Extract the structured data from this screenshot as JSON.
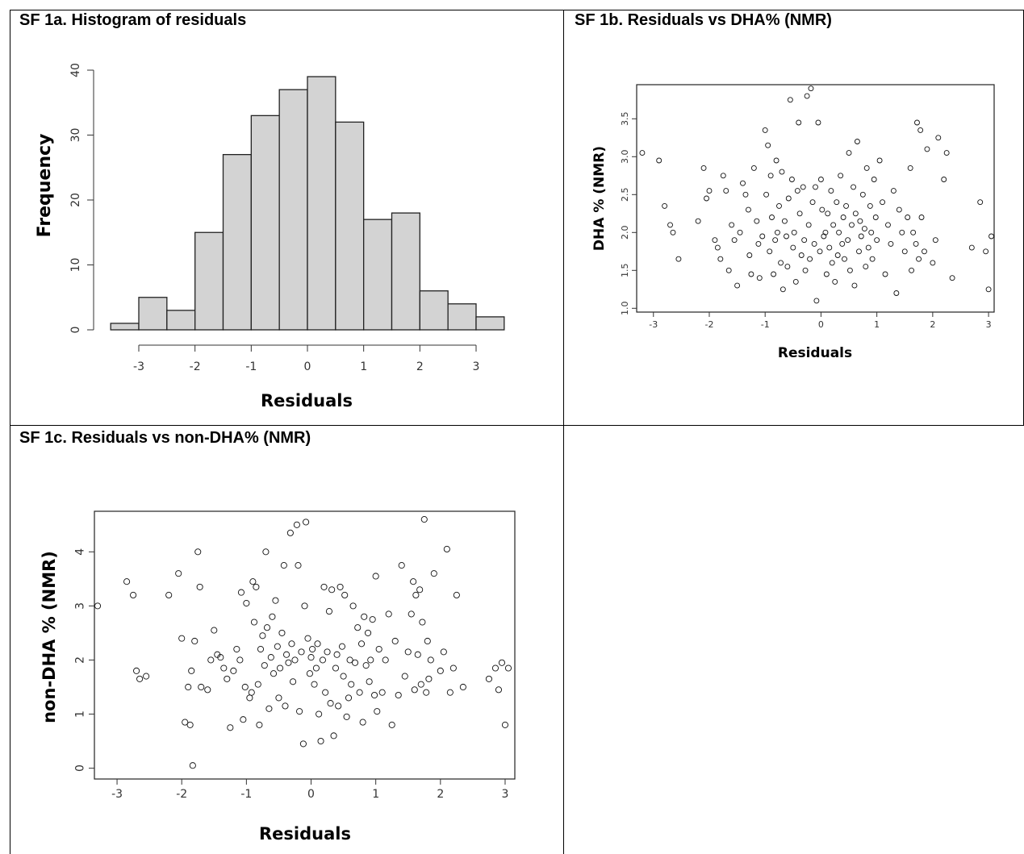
{
  "panels": {
    "a_title": "SF 1a. Histogram of residuals",
    "b_title": "SF 1b. Residuals vs DHA% (NMR)",
    "c_title": "SF 1c. Residuals vs non-DHA% (NMR)"
  },
  "chart_data": [
    {
      "type": "bar",
      "title": "SF 1a. Histogram of residuals",
      "xlabel": "Residuals",
      "ylabel": "Frequency",
      "bins": [
        [
          -3.5,
          -3.0
        ],
        [
          -3.0,
          -2.5
        ],
        [
          -2.5,
          -2.0
        ],
        [
          -2.0,
          -1.5
        ],
        [
          -1.5,
          -1.0
        ],
        [
          -1.0,
          -0.5
        ],
        [
          -0.5,
          0.0
        ],
        [
          0.0,
          0.5
        ],
        [
          0.5,
          1.0
        ],
        [
          1.0,
          1.5
        ],
        [
          1.5,
          2.0
        ],
        [
          2.0,
          2.5
        ],
        [
          2.5,
          3.0
        ],
        [
          3.0,
          3.5
        ]
      ],
      "values": [
        1,
        5,
        3,
        15,
        27,
        33,
        37,
        39,
        32,
        17,
        18,
        6,
        4,
        2
      ],
      "bar_color": "#d3d3d3",
      "xlim": [
        -3.5,
        3.5
      ],
      "ylim": [
        0,
        40
      ],
      "xticks": [
        -3,
        -2,
        -1,
        0,
        1,
        2,
        3
      ],
      "xtick_labels": [
        "-3",
        "-2",
        "-1",
        "0",
        "1",
        "2",
        "3"
      ],
      "yticks": [
        0,
        10,
        20,
        30,
        40
      ],
      "ytick_labels": [
        "0",
        "10",
        "20",
        "30",
        "40"
      ]
    },
    {
      "type": "scatter",
      "title": "SF 1b. Residuals vs DHA% (NMR)",
      "xlabel": "Residuals",
      "ylabel": "DHA % (NMR)",
      "xlim": [
        -3.3,
        3.1
      ],
      "ylim": [
        0.95,
        3.95
      ],
      "xticks": [
        -3,
        -2,
        -1,
        0,
        1,
        2,
        3
      ],
      "xtick_labels": [
        "-3",
        "-2",
        "-1",
        "0",
        "1",
        "2",
        "3"
      ],
      "yticks": [
        1.0,
        1.5,
        2.0,
        2.5,
        3.0,
        3.5
      ],
      "ytick_labels": [
        "1.0",
        "1.5",
        "2.0",
        "2.5",
        "3.0",
        "3.5"
      ],
      "points": [
        [
          -3.2,
          3.05
        ],
        [
          -2.9,
          2.95
        ],
        [
          -2.8,
          2.35
        ],
        [
          -2.7,
          2.1
        ],
        [
          -2.65,
          2.0
        ],
        [
          -2.55,
          1.65
        ],
        [
          -2.2,
          2.15
        ],
        [
          -2.1,
          2.85
        ],
        [
          -2.05,
          2.45
        ],
        [
          -2.0,
          2.55
        ],
        [
          -1.9,
          1.9
        ],
        [
          -1.85,
          1.8
        ],
        [
          -1.8,
          1.65
        ],
        [
          -1.75,
          2.75
        ],
        [
          -1.7,
          2.55
        ],
        [
          -1.65,
          1.5
        ],
        [
          -1.6,
          2.1
        ],
        [
          -1.55,
          1.9
        ],
        [
          -1.5,
          1.3
        ],
        [
          -1.45,
          2.0
        ],
        [
          -1.4,
          2.65
        ],
        [
          -1.35,
          2.5
        ],
        [
          -1.3,
          2.3
        ],
        [
          -1.28,
          1.7
        ],
        [
          -1.25,
          1.45
        ],
        [
          -1.2,
          2.85
        ],
        [
          -1.15,
          2.15
        ],
        [
          -1.12,
          1.85
        ],
        [
          -1.1,
          1.4
        ],
        [
          -1.05,
          1.95
        ],
        [
          -1.0,
          3.35
        ],
        [
          -0.98,
          2.5
        ],
        [
          -0.95,
          3.15
        ],
        [
          -0.92,
          1.75
        ],
        [
          -0.9,
          2.75
        ],
        [
          -0.88,
          2.2
        ],
        [
          -0.85,
          1.45
        ],
        [
          -0.82,
          1.9
        ],
        [
          -0.8,
          2.95
        ],
        [
          -0.78,
          2.0
        ],
        [
          -0.75,
          2.35
        ],
        [
          -0.72,
          1.6
        ],
        [
          -0.7,
          2.8
        ],
        [
          -0.68,
          1.25
        ],
        [
          -0.65,
          2.15
        ],
        [
          -0.62,
          1.95
        ],
        [
          -0.6,
          1.55
        ],
        [
          -0.58,
          2.45
        ],
        [
          -0.55,
          3.75
        ],
        [
          -0.52,
          2.7
        ],
        [
          -0.5,
          1.8
        ],
        [
          -0.48,
          2.0
        ],
        [
          -0.45,
          1.35
        ],
        [
          -0.42,
          2.55
        ],
        [
          -0.4,
          3.45
        ],
        [
          -0.38,
          2.25
        ],
        [
          -0.35,
          1.7
        ],
        [
          -0.32,
          2.6
        ],
        [
          -0.3,
          1.9
        ],
        [
          -0.28,
          1.5
        ],
        [
          -0.25,
          3.8
        ],
        [
          -0.22,
          2.1
        ],
        [
          -0.2,
          1.65
        ],
        [
          -0.18,
          3.9
        ],
        [
          -0.15,
          2.4
        ],
        [
          -0.12,
          1.85
        ],
        [
          -0.1,
          2.6
        ],
        [
          -0.08,
          1.1
        ],
        [
          -0.05,
          3.45
        ],
        [
          -0.02,
          1.75
        ],
        [
          0.0,
          2.7
        ],
        [
          0.02,
          2.3
        ],
        [
          0.05,
          1.95
        ],
        [
          0.08,
          2.0
        ],
        [
          0.1,
          1.45
        ],
        [
          0.12,
          2.25
        ],
        [
          0.15,
          1.8
        ],
        [
          0.18,
          2.55
        ],
        [
          0.2,
          1.6
        ],
        [
          0.22,
          2.1
        ],
        [
          0.25,
          1.35
        ],
        [
          0.28,
          2.4
        ],
        [
          0.3,
          1.7
        ],
        [
          0.32,
          2.0
        ],
        [
          0.35,
          2.75
        ],
        [
          0.38,
          1.85
        ],
        [
          0.4,
          2.2
        ],
        [
          0.42,
          1.65
        ],
        [
          0.45,
          2.35
        ],
        [
          0.48,
          1.9
        ],
        [
          0.5,
          3.05
        ],
        [
          0.52,
          1.5
        ],
        [
          0.55,
          2.1
        ],
        [
          0.58,
          2.6
        ],
        [
          0.6,
          1.3
        ],
        [
          0.62,
          2.25
        ],
        [
          0.65,
          3.2
        ],
        [
          0.68,
          1.75
        ],
        [
          0.7,
          2.15
        ],
        [
          0.72,
          1.95
        ],
        [
          0.75,
          2.5
        ],
        [
          0.78,
          2.05
        ],
        [
          0.8,
          1.55
        ],
        [
          0.82,
          2.85
        ],
        [
          0.85,
          1.8
        ],
        [
          0.88,
          2.35
        ],
        [
          0.9,
          2.0
        ],
        [
          0.92,
          1.65
        ],
        [
          0.95,
          2.7
        ],
        [
          0.98,
          2.2
        ],
        [
          1.0,
          1.9
        ],
        [
          1.05,
          2.95
        ],
        [
          1.1,
          2.4
        ],
        [
          1.15,
          1.45
        ],
        [
          1.2,
          2.1
        ],
        [
          1.25,
          1.85
        ],
        [
          1.3,
          2.55
        ],
        [
          1.35,
          1.2
        ],
        [
          1.4,
          2.3
        ],
        [
          1.45,
          2.0
        ],
        [
          1.5,
          1.75
        ],
        [
          1.55,
          2.2
        ],
        [
          1.6,
          2.85
        ],
        [
          1.62,
          1.5
        ],
        [
          1.65,
          2.0
        ],
        [
          1.7,
          1.85
        ],
        [
          1.72,
          3.45
        ],
        [
          1.75,
          1.65
        ],
        [
          1.78,
          3.35
        ],
        [
          1.8,
          2.2
        ],
        [
          1.85,
          1.75
        ],
        [
          1.9,
          3.1
        ],
        [
          2.0,
          1.6
        ],
        [
          2.05,
          1.9
        ],
        [
          2.1,
          3.25
        ],
        [
          2.2,
          2.7
        ],
        [
          2.25,
          3.05
        ],
        [
          2.35,
          1.4
        ],
        [
          2.7,
          1.8
        ],
        [
          2.85,
          2.4
        ],
        [
          2.95,
          1.75
        ],
        [
          3.0,
          1.25
        ],
        [
          3.05,
          1.95
        ]
      ]
    },
    {
      "type": "scatter",
      "title": "SF 1c. Residuals vs non-DHA% (NMR)",
      "xlabel": "Residuals",
      "ylabel": "non-DHA % (NMR)",
      "xlim": [
        -3.35,
        3.15
      ],
      "ylim": [
        -0.2,
        4.75
      ],
      "xticks": [
        -3,
        -2,
        -1,
        0,
        1,
        2,
        3
      ],
      "xtick_labels": [
        "-3",
        "-2",
        "-1",
        "0",
        "1",
        "2",
        "3"
      ],
      "yticks": [
        0,
        1,
        2,
        3,
        4
      ],
      "ytick_labels": [
        "0",
        "1",
        "2",
        "3",
        "4"
      ],
      "points": [
        [
          -3.3,
          3.0
        ],
        [
          -2.85,
          3.45
        ],
        [
          -2.75,
          3.2
        ],
        [
          -2.7,
          1.8
        ],
        [
          -2.65,
          1.65
        ],
        [
          -2.55,
          1.7
        ],
        [
          -2.2,
          3.2
        ],
        [
          -2.05,
          3.6
        ],
        [
          -2.0,
          2.4
        ],
        [
          -1.95,
          0.85
        ],
        [
          -1.9,
          1.5
        ],
        [
          -1.87,
          0.8
        ],
        [
          -1.85,
          1.8
        ],
        [
          -1.83,
          0.05
        ],
        [
          -1.8,
          2.35
        ],
        [
          -1.75,
          4.0
        ],
        [
          -1.72,
          3.35
        ],
        [
          -1.7,
          1.5
        ],
        [
          -1.6,
          1.45
        ],
        [
          -1.55,
          2.0
        ],
        [
          -1.5,
          2.55
        ],
        [
          -1.45,
          2.1
        ],
        [
          -1.4,
          2.05
        ],
        [
          -1.35,
          1.85
        ],
        [
          -1.3,
          1.65
        ],
        [
          -1.25,
          0.75
        ],
        [
          -1.2,
          1.8
        ],
        [
          -1.15,
          2.2
        ],
        [
          -1.1,
          2.0
        ],
        [
          -1.08,
          3.25
        ],
        [
          -1.05,
          0.9
        ],
        [
          -1.02,
          1.5
        ],
        [
          -1.0,
          3.05
        ],
        [
          -0.95,
          1.3
        ],
        [
          -0.92,
          1.4
        ],
        [
          -0.9,
          3.45
        ],
        [
          -0.88,
          2.7
        ],
        [
          -0.85,
          3.35
        ],
        [
          -0.82,
          1.55
        ],
        [
          -0.8,
          0.8
        ],
        [
          -0.78,
          2.2
        ],
        [
          -0.75,
          2.45
        ],
        [
          -0.72,
          1.9
        ],
        [
          -0.7,
          4.0
        ],
        [
          -0.68,
          2.6
        ],
        [
          -0.65,
          1.1
        ],
        [
          -0.62,
          2.05
        ],
        [
          -0.6,
          2.8
        ],
        [
          -0.58,
          1.75
        ],
        [
          -0.55,
          3.1
        ],
        [
          -0.52,
          2.25
        ],
        [
          -0.5,
          1.3
        ],
        [
          -0.48,
          1.85
        ],
        [
          -0.45,
          2.5
        ],
        [
          -0.42,
          3.75
        ],
        [
          -0.4,
          1.15
        ],
        [
          -0.38,
          2.1
        ],
        [
          -0.35,
          1.95
        ],
        [
          -0.32,
          4.35
        ],
        [
          -0.3,
          2.3
        ],
        [
          -0.28,
          1.6
        ],
        [
          -0.25,
          2.0
        ],
        [
          -0.22,
          4.5
        ],
        [
          -0.2,
          3.75
        ],
        [
          -0.18,
          1.05
        ],
        [
          -0.15,
          2.15
        ],
        [
          -0.12,
          0.45
        ],
        [
          -0.1,
          3.0
        ],
        [
          -0.08,
          4.55
        ],
        [
          -0.05,
          2.4
        ],
        [
          -0.02,
          1.75
        ],
        [
          0.0,
          2.05
        ],
        [
          0.02,
          2.2
        ],
        [
          0.05,
          1.55
        ],
        [
          0.08,
          1.85
        ],
        [
          0.1,
          2.3
        ],
        [
          0.12,
          1.0
        ],
        [
          0.15,
          0.5
        ],
        [
          0.18,
          2.0
        ],
        [
          0.2,
          3.35
        ],
        [
          0.22,
          1.4
        ],
        [
          0.25,
          2.15
        ],
        [
          0.28,
          2.9
        ],
        [
          0.3,
          1.2
        ],
        [
          0.32,
          3.3
        ],
        [
          0.35,
          0.6
        ],
        [
          0.38,
          1.85
        ],
        [
          0.4,
          2.1
        ],
        [
          0.42,
          1.15
        ],
        [
          0.45,
          3.35
        ],
        [
          0.48,
          2.25
        ],
        [
          0.5,
          1.7
        ],
        [
          0.52,
          3.2
        ],
        [
          0.55,
          0.95
        ],
        [
          0.58,
          1.3
        ],
        [
          0.6,
          2.0
        ],
        [
          0.62,
          1.55
        ],
        [
          0.65,
          3.0
        ],
        [
          0.68,
          1.95
        ],
        [
          0.72,
          2.6
        ],
        [
          0.75,
          1.4
        ],
        [
          0.78,
          2.3
        ],
        [
          0.8,
          0.85
        ],
        [
          0.82,
          2.8
        ],
        [
          0.85,
          1.9
        ],
        [
          0.88,
          2.5
        ],
        [
          0.9,
          1.6
        ],
        [
          0.92,
          2.0
        ],
        [
          0.95,
          2.75
        ],
        [
          0.98,
          1.35
        ],
        [
          1.0,
          3.55
        ],
        [
          1.02,
          1.05
        ],
        [
          1.05,
          2.2
        ],
        [
          1.1,
          1.4
        ],
        [
          1.15,
          2.0
        ],
        [
          1.2,
          2.85
        ],
        [
          1.25,
          0.8
        ],
        [
          1.3,
          2.35
        ],
        [
          1.35,
          1.35
        ],
        [
          1.4,
          3.75
        ],
        [
          1.45,
          1.7
        ],
        [
          1.5,
          2.15
        ],
        [
          1.55,
          2.85
        ],
        [
          1.58,
          3.45
        ],
        [
          1.6,
          1.45
        ],
        [
          1.62,
          3.2
        ],
        [
          1.65,
          2.1
        ],
        [
          1.68,
          3.3
        ],
        [
          1.7,
          1.55
        ],
        [
          1.72,
          2.7
        ],
        [
          1.75,
          4.6
        ],
        [
          1.78,
          1.4
        ],
        [
          1.8,
          2.35
        ],
        [
          1.82,
          1.65
        ],
        [
          1.85,
          2.0
        ],
        [
          1.9,
          3.6
        ],
        [
          2.0,
          1.8
        ],
        [
          2.05,
          2.15
        ],
        [
          2.1,
          4.05
        ],
        [
          2.15,
          1.4
        ],
        [
          2.2,
          1.85
        ],
        [
          2.25,
          3.2
        ],
        [
          2.35,
          1.5
        ],
        [
          2.75,
          1.65
        ],
        [
          2.85,
          1.85
        ],
        [
          2.9,
          1.45
        ],
        [
          2.95,
          1.95
        ],
        [
          3.0,
          0.8
        ],
        [
          3.05,
          1.85
        ]
      ]
    }
  ]
}
